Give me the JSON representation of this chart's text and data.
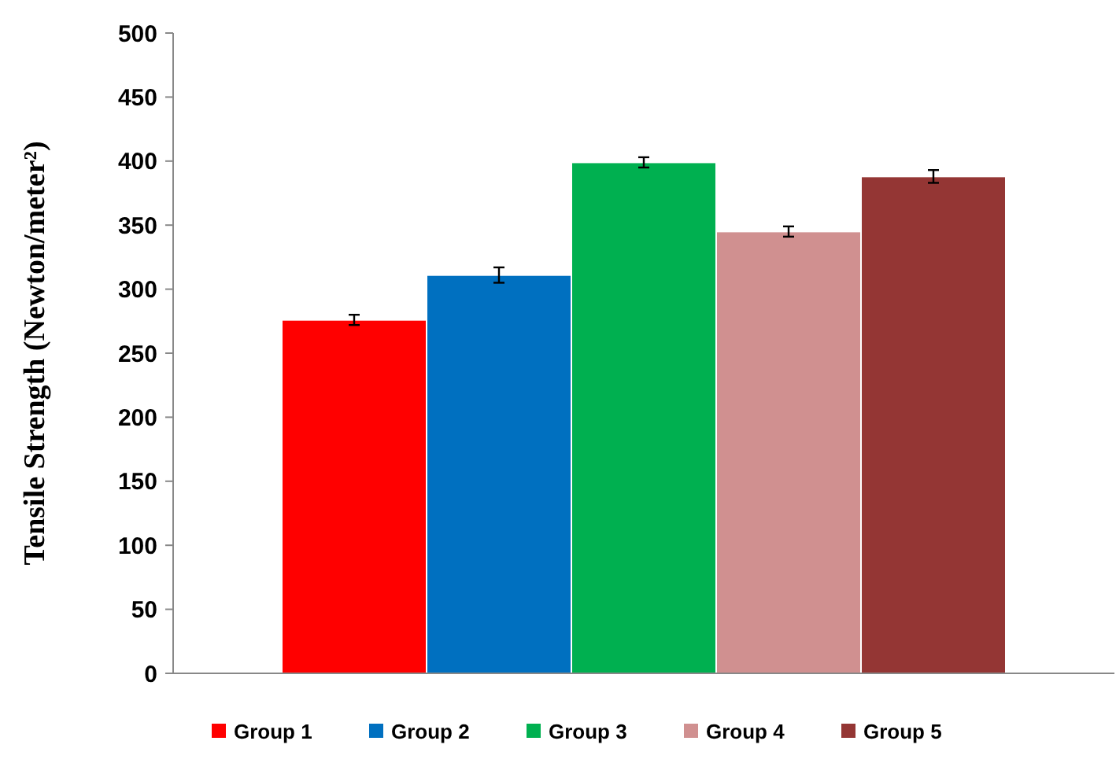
{
  "chart_data": {
    "type": "bar",
    "ylabel": "Tensile Strength (Newton/meter²)",
    "categories": [
      null
    ],
    "series": [
      {
        "name": "Group 1",
        "color": "#ff0000",
        "values": [
          276
        ],
        "errors": [
          4
        ]
      },
      {
        "name": "Group 2",
        "color": "#0070c0",
        "values": [
          311
        ],
        "errors": [
          6
        ]
      },
      {
        "name": "Group 3",
        "color": "#00b050",
        "values": [
          399
        ],
        "errors": [
          4
        ]
      },
      {
        "name": "Group 4",
        "color": "#d09090",
        "values": [
          345
        ],
        "errors": [
          4
        ]
      },
      {
        "name": "Group 5",
        "color": "#943634",
        "values": [
          388
        ],
        "errors": [
          5
        ]
      }
    ],
    "ylim": [
      0,
      500
    ],
    "yticks": [
      0,
      50,
      100,
      150,
      200,
      250,
      300,
      350,
      400,
      450,
      500
    ],
    "legend": "bottom",
    "grid": false
  }
}
